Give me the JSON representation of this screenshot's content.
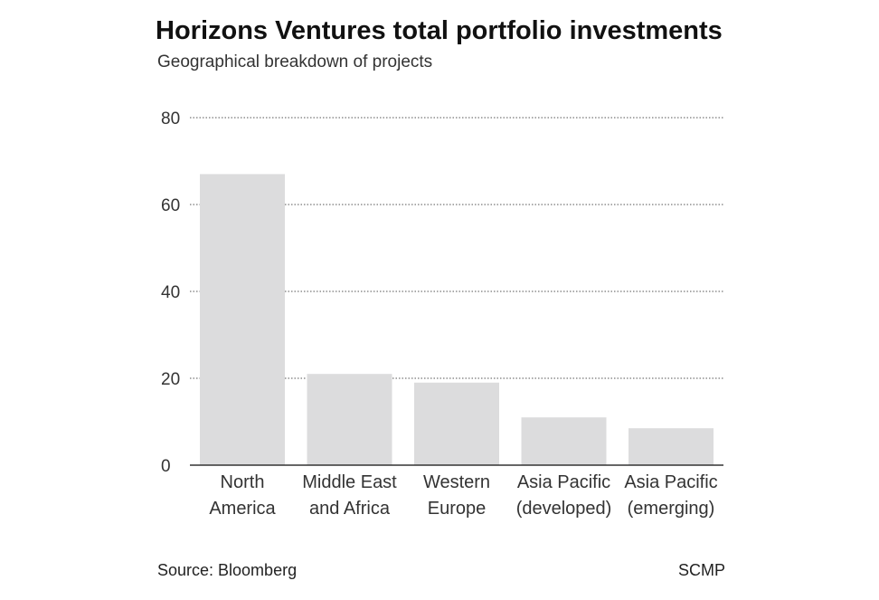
{
  "chart_data": {
    "type": "bar",
    "title": "Horizons Ventures total portfolio investments",
    "subtitle": "Geographical breakdown of projects",
    "categories": [
      [
        "North",
        "America"
      ],
      [
        "Middle East",
        "and Africa"
      ],
      [
        "Western",
        "Europe"
      ],
      [
        "Asia Pacific",
        "(developed)"
      ],
      [
        "Asia Pacific",
        "(emerging)"
      ]
    ],
    "values": [
      67,
      21,
      19,
      11,
      8.5
    ],
    "ylim": [
      0,
      80
    ],
    "yticks": [
      0,
      20,
      40,
      60,
      80
    ],
    "grid": true,
    "bar_color": "#dcdcdd",
    "axis_color": "#333333",
    "grid_color": "#555555"
  },
  "footer": {
    "source": "Source: Bloomberg",
    "credit": "SCMP"
  }
}
